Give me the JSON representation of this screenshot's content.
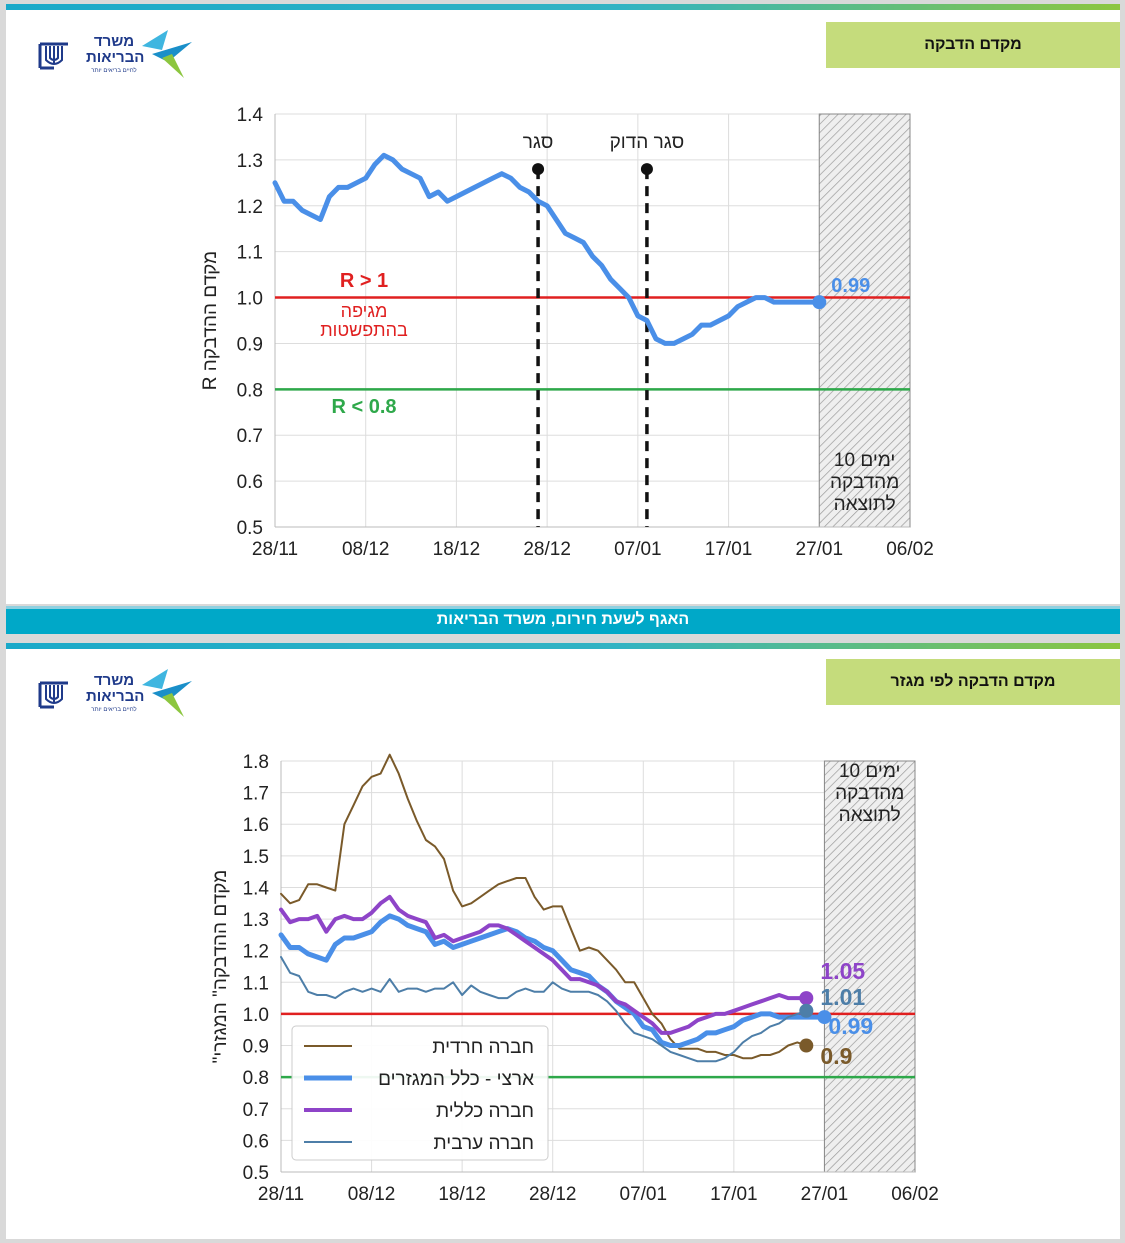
{
  "slide1": {
    "title": "מקדם הדבקה",
    "logo": {
      "name_line1": "משרד",
      "name_line2": "הבריאות",
      "tagline": "לחיים בריאים יותר"
    },
    "chart_data": {
      "type": "line",
      "ylabel": "R מקדם ההדבקה",
      "ylim": [
        0.5,
        1.4
      ],
      "yticks": [
        "0.5",
        "0.6",
        "0.7",
        "0.8",
        "0.9",
        "1.0",
        "1.1",
        "1.2",
        "1.3",
        "1.4"
      ],
      "xlim": [
        0,
        70
      ],
      "xtick_labels": [
        "28/11",
        "08/12",
        "18/12",
        "28/12",
        "07/01",
        "17/01",
        "27/01",
        "06/02"
      ],
      "series": [
        {
          "name": "R",
          "color": "#4a8fe8",
          "x": [
            0,
            1,
            2,
            3,
            4,
            5,
            6,
            7,
            8,
            9,
            10,
            11,
            12,
            13,
            14,
            15,
            16,
            17,
            18,
            19,
            20,
            21,
            22,
            23,
            24,
            25,
            26,
            27,
            28,
            29,
            30,
            31,
            32,
            33,
            34,
            35,
            36,
            37,
            38,
            39,
            40,
            41,
            42,
            43,
            44,
            45,
            46,
            47,
            48,
            49,
            50,
            51,
            52,
            53,
            54,
            55,
            56,
            57,
            58,
            59,
            60
          ],
          "y": [
            1.25,
            1.21,
            1.21,
            1.19,
            1.18,
            1.17,
            1.22,
            1.24,
            1.24,
            1.25,
            1.26,
            1.29,
            1.31,
            1.3,
            1.28,
            1.27,
            1.26,
            1.22,
            1.23,
            1.21,
            1.22,
            1.23,
            1.24,
            1.25,
            1.26,
            1.27,
            1.26,
            1.24,
            1.23,
            1.21,
            1.2,
            1.17,
            1.14,
            1.13,
            1.12,
            1.09,
            1.07,
            1.04,
            1.02,
            1.0,
            0.96,
            0.95,
            0.91,
            0.9,
            0.9,
            0.91,
            0.92,
            0.94,
            0.94,
            0.95,
            0.96,
            0.98,
            0.99,
            1.0,
            1.0,
            0.99,
            0.99,
            0.99,
            0.99,
            0.99,
            0.99
          ]
        }
      ],
      "end_label": "0.99",
      "hlines": [
        {
          "y": 1.0,
          "color": "#e02020",
          "label": "R > 1",
          "sublabel1": "מגיפה",
          "sublabel2": "בהתפשטות"
        },
        {
          "y": 0.8,
          "color": "#2ea84a",
          "label": "R < 0.8"
        }
      ],
      "vlines": [
        {
          "x": 29,
          "label": "סגר"
        },
        {
          "x": 41,
          "label": "סגר הדוק"
        }
      ],
      "shaded_region": {
        "x_start": 60,
        "x_end": 70,
        "label_lines": [
          "10 ימים",
          "מהדבקה",
          "לתוצאה"
        ]
      }
    }
  },
  "footer": {
    "text": "האגף לשעת חירום, משרד הבריאות"
  },
  "slide2": {
    "title": "מקדם הדבקה לפי מגזר",
    "logo": {
      "name_line1": "משרד",
      "name_line2": "הבריאות",
      "tagline": "לחיים בריאים יותר"
    },
    "chart_data": {
      "type": "line",
      "ylabel": "\"מקדם ההדבקה\" המגזרי",
      "ylim": [
        0.5,
        1.8
      ],
      "yticks": [
        "0.5",
        "0.6",
        "0.7",
        "0.8",
        "0.9",
        "1.0",
        "1.1",
        "1.2",
        "1.3",
        "1.4",
        "1.5",
        "1.6",
        "1.7",
        "1.8"
      ],
      "xlim": [
        0,
        70
      ],
      "xtick_labels": [
        "28/11",
        "08/12",
        "18/12",
        "28/12",
        "07/01",
        "17/01",
        "27/01",
        "06/02"
      ],
      "hlines": [
        {
          "y": 1.0,
          "color": "#e02020"
        },
        {
          "y": 0.8,
          "color": "#2ea84a"
        }
      ],
      "series": [
        {
          "name": "חברה חרדית",
          "color": "#7a5a2a",
          "width": 2,
          "end_label": "0.9",
          "x": [
            0,
            1,
            2,
            3,
            4,
            5,
            6,
            7,
            8,
            9,
            10,
            11,
            12,
            13,
            14,
            15,
            16,
            17,
            18,
            19,
            20,
            21,
            22,
            23,
            24,
            25,
            26,
            27,
            28,
            29,
            30,
            31,
            32,
            33,
            34,
            35,
            36,
            37,
            38,
            39,
            40,
            41,
            42,
            43,
            44,
            45,
            46,
            47,
            48,
            49,
            50,
            51,
            52,
            53,
            54,
            55,
            56,
            57,
            58
          ],
          "y": [
            1.38,
            1.35,
            1.36,
            1.41,
            1.41,
            1.4,
            1.39,
            1.6,
            1.66,
            1.72,
            1.75,
            1.76,
            1.82,
            1.76,
            1.68,
            1.61,
            1.55,
            1.53,
            1.49,
            1.39,
            1.34,
            1.35,
            1.37,
            1.39,
            1.41,
            1.42,
            1.43,
            1.43,
            1.37,
            1.33,
            1.34,
            1.34,
            1.27,
            1.2,
            1.21,
            1.2,
            1.17,
            1.14,
            1.1,
            1.1,
            1.05,
            1.0,
            0.97,
            0.92,
            0.89,
            0.89,
            0.89,
            0.88,
            0.88,
            0.87,
            0.87,
            0.86,
            0.86,
            0.87,
            0.87,
            0.88,
            0.9,
            0.91,
            0.9
          ]
        },
        {
          "name": "ארצי - כלל המגזרים",
          "color": "#4a8fe8",
          "width": 5,
          "end_label": "0.99",
          "x": [
            0,
            1,
            2,
            3,
            4,
            5,
            6,
            7,
            8,
            9,
            10,
            11,
            12,
            13,
            14,
            15,
            16,
            17,
            18,
            19,
            20,
            21,
            22,
            23,
            24,
            25,
            26,
            27,
            28,
            29,
            30,
            31,
            32,
            33,
            34,
            35,
            36,
            37,
            38,
            39,
            40,
            41,
            42,
            43,
            44,
            45,
            46,
            47,
            48,
            49,
            50,
            51,
            52,
            53,
            54,
            55,
            56,
            57,
            58,
            59,
            60
          ],
          "y": [
            1.25,
            1.21,
            1.21,
            1.19,
            1.18,
            1.17,
            1.22,
            1.24,
            1.24,
            1.25,
            1.26,
            1.29,
            1.31,
            1.3,
            1.28,
            1.27,
            1.26,
            1.22,
            1.23,
            1.21,
            1.22,
            1.23,
            1.24,
            1.25,
            1.26,
            1.27,
            1.26,
            1.24,
            1.23,
            1.21,
            1.2,
            1.17,
            1.14,
            1.13,
            1.12,
            1.09,
            1.07,
            1.04,
            1.02,
            1.0,
            0.96,
            0.95,
            0.91,
            0.9,
            0.9,
            0.91,
            0.92,
            0.94,
            0.94,
            0.95,
            0.96,
            0.98,
            0.99,
            1.0,
            1.0,
            0.99,
            0.99,
            0.99,
            0.99,
            0.99,
            0.99
          ]
        },
        {
          "name": "חברה כללית",
          "color": "#8e44c8",
          "width": 4,
          "end_label": "1.05",
          "x": [
            0,
            1,
            2,
            3,
            4,
            5,
            6,
            7,
            8,
            9,
            10,
            11,
            12,
            13,
            14,
            15,
            16,
            17,
            18,
            19,
            20,
            21,
            22,
            23,
            24,
            25,
            26,
            27,
            28,
            29,
            30,
            31,
            32,
            33,
            34,
            35,
            36,
            37,
            38,
            39,
            40,
            41,
            42,
            43,
            44,
            45,
            46,
            47,
            48,
            49,
            50,
            51,
            52,
            53,
            54,
            55,
            56,
            57,
            58
          ],
          "y": [
            1.33,
            1.29,
            1.3,
            1.3,
            1.31,
            1.26,
            1.3,
            1.31,
            1.3,
            1.3,
            1.32,
            1.35,
            1.37,
            1.33,
            1.31,
            1.3,
            1.29,
            1.24,
            1.25,
            1.23,
            1.24,
            1.25,
            1.26,
            1.28,
            1.28,
            1.27,
            1.25,
            1.23,
            1.21,
            1.19,
            1.17,
            1.14,
            1.11,
            1.11,
            1.1,
            1.09,
            1.07,
            1.04,
            1.03,
            1.01,
            0.99,
            0.97,
            0.94,
            0.94,
            0.95,
            0.96,
            0.98,
            0.99,
            1.0,
            1.0,
            1.01,
            1.02,
            1.03,
            1.04,
            1.05,
            1.06,
            1.05,
            1.05,
            1.05
          ]
        },
        {
          "name": "חברה ערבית",
          "color": "#4d7ea8",
          "width": 2,
          "end_label": "1.01",
          "x": [
            0,
            1,
            2,
            3,
            4,
            5,
            6,
            7,
            8,
            9,
            10,
            11,
            12,
            13,
            14,
            15,
            16,
            17,
            18,
            19,
            20,
            21,
            22,
            23,
            24,
            25,
            26,
            27,
            28,
            29,
            30,
            31,
            32,
            33,
            34,
            35,
            36,
            37,
            38,
            39,
            40,
            41,
            42,
            43,
            44,
            45,
            46,
            47,
            48,
            49,
            50,
            51,
            52,
            53,
            54,
            55,
            56,
            57,
            58
          ],
          "y": [
            1.18,
            1.13,
            1.12,
            1.07,
            1.06,
            1.06,
            1.05,
            1.07,
            1.08,
            1.07,
            1.08,
            1.07,
            1.11,
            1.07,
            1.08,
            1.08,
            1.07,
            1.08,
            1.08,
            1.1,
            1.06,
            1.09,
            1.07,
            1.06,
            1.05,
            1.05,
            1.07,
            1.08,
            1.07,
            1.07,
            1.1,
            1.08,
            1.07,
            1.07,
            1.07,
            1.06,
            1.04,
            1.01,
            0.97,
            0.94,
            0.93,
            0.92,
            0.9,
            0.88,
            0.87,
            0.86,
            0.85,
            0.85,
            0.85,
            0.86,
            0.88,
            0.91,
            0.93,
            0.94,
            0.96,
            0.97,
            0.99,
            1.0,
            1.01
          ]
        }
      ],
      "shaded_region": {
        "x_start": 60,
        "x_end": 70,
        "label_lines": [
          "10 ימים",
          "מהדבקה",
          "לתוצאה"
        ]
      }
    }
  }
}
